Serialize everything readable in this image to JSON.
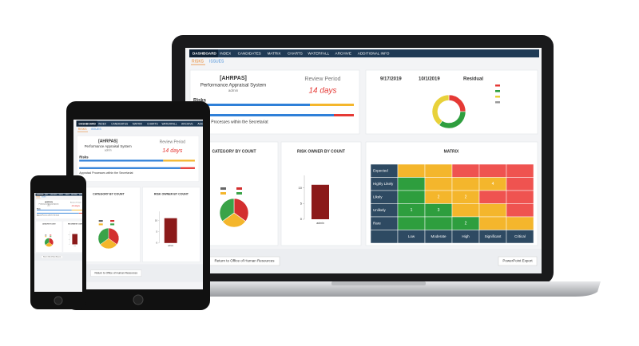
{
  "nav": [
    "DASHBOARD",
    "INDEX",
    "CANDIDATES",
    "MATRIX",
    "CHARTS",
    "WATERFALL",
    "ARCHIVE",
    "ADDITIONAL INFO"
  ],
  "tabs": [
    "RISKS",
    "ISSUES"
  ],
  "summary": {
    "code": "[AHRPAS]",
    "system": "Performance Appraisal System",
    "user": "admin",
    "review_label": "Review Period",
    "review_value": "14 days",
    "risks_label": "Risks",
    "note": "Appraisal Processes within the Secretariat"
  },
  "dates": {
    "start": "9/17/2019",
    "end": "10/1/2019",
    "residual": "Residual"
  },
  "residual_chart": {
    "type": "pie",
    "values": [
      25,
      35,
      40
    ],
    "colors": [
      "#e53935",
      "#2e9e3e",
      "#e8d13a"
    ]
  },
  "category_chart": {
    "type": "pie",
    "title": "CATEGORY BY COUNT",
    "values": [
      35,
      30,
      35
    ],
    "colors": [
      "#d32f2f",
      "#f4b62c",
      "#3aa348"
    ]
  },
  "owner_chart": {
    "type": "bar",
    "title": "RISK OWNER BY COUNT",
    "categories": [
      "admin"
    ],
    "values": [
      11
    ],
    "color": "#8b1a1a",
    "ylim": [
      0,
      14
    ],
    "yticks": [
      0,
      5,
      10
    ]
  },
  "matrix": {
    "title": "MATRIX",
    "rows": [
      "Expected",
      "Highly Likely",
      "Likely",
      "Unlikely",
      "Rare"
    ],
    "cols": [
      "Low",
      "Moderate",
      "High",
      "Significant",
      "Critical"
    ],
    "cells": [
      [
        null,
        null,
        null,
        null,
        null
      ],
      [
        null,
        null,
        null,
        4,
        null
      ],
      [
        null,
        2,
        2,
        null,
        null
      ],
      [
        1,
        3,
        null,
        null,
        null
      ],
      [
        null,
        null,
        2,
        null,
        null
      ]
    ],
    "colors": [
      [
        "#f4b62c",
        "#f4b62c",
        "#ef5350",
        "#ef5350",
        "#ef5350"
      ],
      [
        "#2e9e3e",
        "#f4b62c",
        "#f4b62c",
        "#f4b62c",
        "#ef5350"
      ],
      [
        "#2e9e3e",
        "#f4b62c",
        "#f4b62c",
        "#ef5350",
        "#ef5350"
      ],
      [
        "#2e9e3e",
        "#2e9e3e",
        "#f4b62c",
        "#f4b62c",
        "#ef5350"
      ],
      [
        "#2e9e3e",
        "#2e9e3e",
        "#2e9e3e",
        "#f4b62c",
        "#f4b62c"
      ]
    ]
  },
  "buttons": {
    "back": "Return to Office of Human Resources",
    "export": "PowerPoint Export"
  }
}
